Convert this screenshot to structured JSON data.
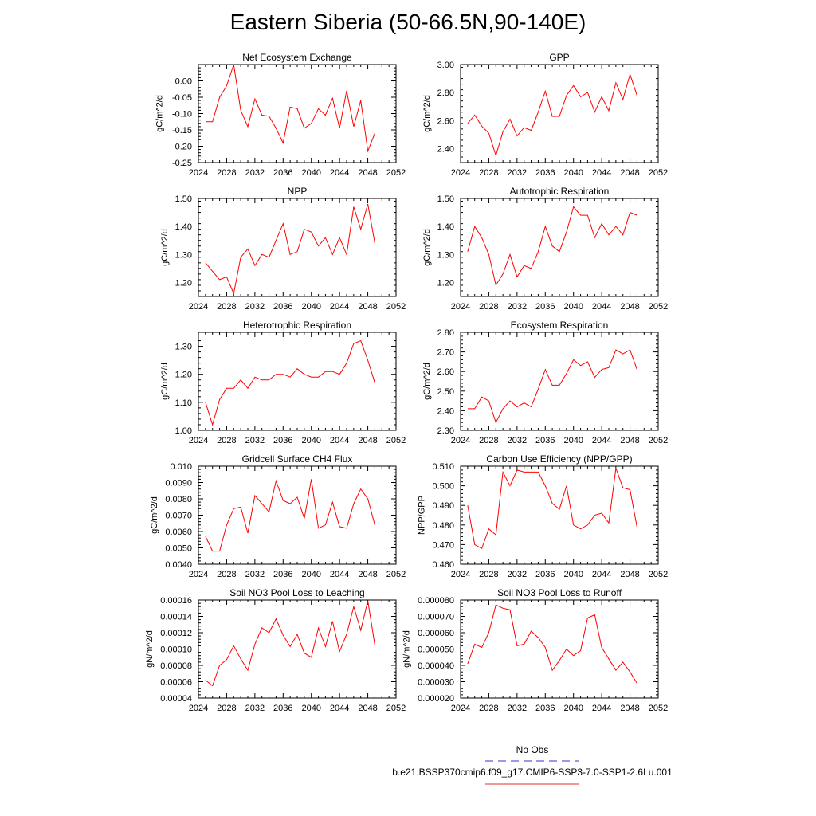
{
  "title": "Eastern Siberia (50-66.5N,90-140E)",
  "legend": {
    "entries": [
      {
        "label": "No Obs",
        "color": "#3333cc",
        "dash": true
      },
      {
        "label": "b.e21.BSSP370cmip6.f09_g17.CMIP6-SSP3-7.0-SSP1-2.6Lu.001",
        "color": "#e03030",
        "dash": false
      }
    ]
  },
  "colors": {
    "series": "#ff0000"
  },
  "chart_data": [
    {
      "type": "line",
      "title": "Net Ecosystem Exchange",
      "ylabel": "gC/m^2/d",
      "xlim": [
        2024,
        2052
      ],
      "xticks": [
        "2024",
        "2028",
        "2032",
        "2036",
        "2040",
        "2044",
        "2048",
        "2052"
      ],
      "ylim": [
        -0.25,
        0.05
      ],
      "yticks": [
        "-0.25",
        "-0.20",
        "-0.15",
        "-0.10",
        "-0.05",
        "0.00"
      ],
      "x": [
        2025,
        2026,
        2027,
        2028,
        2029,
        2030,
        2031,
        2032,
        2033,
        2034,
        2035,
        2036,
        2037,
        2038,
        2039,
        2040,
        2041,
        2042,
        2043,
        2044,
        2045,
        2046,
        2047,
        2048,
        2049
      ],
      "y": [
        -0.125,
        -0.125,
        -0.05,
        -0.015,
        0.05,
        -0.09,
        -0.14,
        -0.055,
        -0.105,
        -0.108,
        -0.145,
        -0.19,
        -0.08,
        -0.085,
        -0.145,
        -0.13,
        -0.085,
        -0.105,
        -0.053,
        -0.145,
        -0.03,
        -0.14,
        -0.06,
        -0.215,
        -0.16
      ]
    },
    {
      "type": "line",
      "title": "GPP",
      "ylabel": "gC/m^2/d",
      "xlim": [
        2024,
        2052
      ],
      "xticks": [
        "2024",
        "2028",
        "2032",
        "2036",
        "2040",
        "2044",
        "2048",
        "2052"
      ],
      "ylim": [
        2.3,
        3.0
      ],
      "yticks": [
        "2.40",
        "2.60",
        "2.80",
        "3.00"
      ],
      "x": [
        2025,
        2026,
        2027,
        2028,
        2029,
        2030,
        2031,
        2032,
        2033,
        2034,
        2035,
        2036,
        2037,
        2038,
        2039,
        2040,
        2041,
        2042,
        2043,
        2044,
        2045,
        2046,
        2047,
        2048,
        2049
      ],
      "y": [
        2.58,
        2.64,
        2.56,
        2.51,
        2.35,
        2.52,
        2.61,
        2.49,
        2.55,
        2.53,
        2.66,
        2.81,
        2.63,
        2.63,
        2.78,
        2.85,
        2.77,
        2.8,
        2.66,
        2.77,
        2.67,
        2.87,
        2.75,
        2.93,
        2.78
      ]
    },
    {
      "type": "line",
      "title": "NPP",
      "ylabel": "gC/m^2/d",
      "xlim": [
        2024,
        2052
      ],
      "xticks": [
        "2024",
        "2028",
        "2032",
        "2036",
        "2040",
        "2044",
        "2048",
        "2052"
      ],
      "ylim": [
        1.15,
        1.5
      ],
      "yticks": [
        "1.20",
        "1.30",
        "1.40",
        "1.50"
      ],
      "x": [
        2025,
        2026,
        2027,
        2028,
        2029,
        2030,
        2031,
        2032,
        2033,
        2034,
        2035,
        2036,
        2037,
        2038,
        2039,
        2040,
        2041,
        2042,
        2043,
        2044,
        2045,
        2046,
        2047,
        2048,
        2049
      ],
      "y": [
        1.27,
        1.24,
        1.21,
        1.22,
        1.16,
        1.29,
        1.32,
        1.26,
        1.3,
        1.29,
        1.35,
        1.41,
        1.3,
        1.31,
        1.39,
        1.38,
        1.33,
        1.36,
        1.3,
        1.36,
        1.3,
        1.47,
        1.39,
        1.48,
        1.34
      ]
    },
    {
      "type": "line",
      "title": "Autotrophic Respiration",
      "ylabel": "gC/m^2/d",
      "xlim": [
        2024,
        2052
      ],
      "xticks": [
        "2024",
        "2028",
        "2032",
        "2036",
        "2040",
        "2044",
        "2048",
        "2052"
      ],
      "ylim": [
        1.15,
        1.5
      ],
      "yticks": [
        "1.20",
        "1.30",
        "1.40",
        "1.50"
      ],
      "x": [
        2025,
        2026,
        2027,
        2028,
        2029,
        2030,
        2031,
        2032,
        2033,
        2034,
        2035,
        2036,
        2037,
        2038,
        2039,
        2040,
        2041,
        2042,
        2043,
        2044,
        2045,
        2046,
        2047,
        2048,
        2049
      ],
      "y": [
        1.31,
        1.4,
        1.36,
        1.3,
        1.19,
        1.23,
        1.3,
        1.22,
        1.26,
        1.25,
        1.31,
        1.4,
        1.33,
        1.31,
        1.38,
        1.47,
        1.44,
        1.44,
        1.36,
        1.41,
        1.37,
        1.4,
        1.37,
        1.45,
        1.44
      ]
    },
    {
      "type": "line",
      "title": "Heterotrophic Respiration",
      "ylabel": "gC/m^2/d",
      "xlim": [
        2024,
        2052
      ],
      "xticks": [
        "2024",
        "2028",
        "2032",
        "2036",
        "2040",
        "2044",
        "2048",
        "2052"
      ],
      "ylim": [
        1.0,
        1.35
      ],
      "yticks": [
        "1.00",
        "1.10",
        "1.20",
        "1.30"
      ],
      "x": [
        2025,
        2026,
        2027,
        2028,
        2029,
        2030,
        2031,
        2032,
        2033,
        2034,
        2035,
        2036,
        2037,
        2038,
        2039,
        2040,
        2041,
        2042,
        2043,
        2044,
        2045,
        2046,
        2047,
        2048,
        2049
      ],
      "y": [
        1.1,
        1.02,
        1.11,
        1.15,
        1.15,
        1.18,
        1.15,
        1.19,
        1.18,
        1.18,
        1.2,
        1.2,
        1.19,
        1.22,
        1.2,
        1.19,
        1.19,
        1.21,
        1.21,
        1.2,
        1.24,
        1.31,
        1.32,
        1.25,
        1.17
      ]
    },
    {
      "type": "line",
      "title": "Ecosystem Respiration",
      "ylabel": "gC/m^2/d",
      "xlim": [
        2024,
        2052
      ],
      "xticks": [
        "2024",
        "2028",
        "2032",
        "2036",
        "2040",
        "2044",
        "2048",
        "2052"
      ],
      "ylim": [
        2.3,
        2.8
      ],
      "yticks": [
        "2.30",
        "2.40",
        "2.50",
        "2.60",
        "2.70",
        "2.80"
      ],
      "x": [
        2025,
        2026,
        2027,
        2028,
        2029,
        2030,
        2031,
        2032,
        2033,
        2034,
        2035,
        2036,
        2037,
        2038,
        2039,
        2040,
        2041,
        2042,
        2043,
        2044,
        2045,
        2046,
        2047,
        2048,
        2049
      ],
      "y": [
        2.41,
        2.41,
        2.47,
        2.45,
        2.34,
        2.41,
        2.45,
        2.42,
        2.44,
        2.42,
        2.51,
        2.61,
        2.53,
        2.53,
        2.59,
        2.66,
        2.63,
        2.65,
        2.57,
        2.61,
        2.62,
        2.71,
        2.69,
        2.71,
        2.61
      ]
    },
    {
      "type": "line",
      "title": "Gridcell Surface CH4 Flux",
      "ylabel": "gC/m^2/d",
      "xlim": [
        2024,
        2052
      ],
      "xticks": [
        "2024",
        "2028",
        "2032",
        "2036",
        "2040",
        "2044",
        "2048",
        "2052"
      ],
      "ylim": [
        0.004,
        0.01
      ],
      "yticks": [
        "0.0040",
        "0.0050",
        "0.0060",
        "0.0070",
        "0.0080",
        "0.0090",
        "0.010"
      ],
      "x": [
        2025,
        2026,
        2027,
        2028,
        2029,
        2030,
        2031,
        2032,
        2033,
        2034,
        2035,
        2036,
        2037,
        2038,
        2039,
        2040,
        2041,
        2042,
        2043,
        2044,
        2045,
        2046,
        2047,
        2048,
        2049
      ],
      "y": [
        0.0057,
        0.0048,
        0.0048,
        0.0064,
        0.0074,
        0.0075,
        0.0059,
        0.0082,
        0.0077,
        0.0072,
        0.0091,
        0.0079,
        0.0077,
        0.0081,
        0.0068,
        0.0092,
        0.0062,
        0.0064,
        0.0078,
        0.0063,
        0.0062,
        0.0077,
        0.0086,
        0.008,
        0.0064
      ]
    },
    {
      "type": "line",
      "title": "Carbon Use Efficiency (NPP/GPP)",
      "ylabel": "NPP/GPP",
      "xlim": [
        2024,
        2052
      ],
      "xticks": [
        "2024",
        "2028",
        "2032",
        "2036",
        "2040",
        "2044",
        "2048",
        "2052"
      ],
      "ylim": [
        0.46,
        0.51
      ],
      "yticks": [
        "0.460",
        "0.470",
        "0.480",
        "0.490",
        "0.500",
        "0.510"
      ],
      "x": [
        2025,
        2026,
        2027,
        2028,
        2029,
        2030,
        2031,
        2032,
        2033,
        2034,
        2035,
        2036,
        2037,
        2038,
        2039,
        2040,
        2041,
        2042,
        2043,
        2044,
        2045,
        2046,
        2047,
        2048,
        2049
      ],
      "y": [
        0.49,
        0.47,
        0.468,
        0.478,
        0.475,
        0.507,
        0.5,
        0.508,
        0.507,
        0.507,
        0.507,
        0.5,
        0.491,
        0.488,
        0.5,
        0.48,
        0.478,
        0.48,
        0.485,
        0.486,
        0.481,
        0.509,
        0.499,
        0.498,
        0.479
      ]
    },
    {
      "type": "line",
      "title": "Soil NO3 Pool Loss to Leaching",
      "ylabel": "gN/m^2/d",
      "xlim": [
        2024,
        2052
      ],
      "xticks": [
        "2024",
        "2028",
        "2032",
        "2036",
        "2040",
        "2044",
        "2048",
        "2052"
      ],
      "ylim": [
        4e-05,
        0.00016
      ],
      "yticks": [
        "0.00004",
        "0.00006",
        "0.00008",
        "0.00010",
        "0.00012",
        "0.00014",
        "0.00016"
      ],
      "x": [
        2025,
        2026,
        2027,
        2028,
        2029,
        2030,
        2031,
        2032,
        2033,
        2034,
        2035,
        2036,
        2037,
        2038,
        2039,
        2040,
        2041,
        2042,
        2043,
        2044,
        2045,
        2046,
        2047,
        2048,
        2049
      ],
      "y": [
        6.2e-05,
        5.5e-05,
        8e-05,
        8.7e-05,
        0.000104,
        8.8e-05,
        7.4e-05,
        0.000106,
        0.000126,
        0.00012,
        0.000137,
        0.000117,
        0.000103,
        0.000118,
        9.5e-05,
        9e-05,
        0.000126,
        0.000103,
        0.000134,
        9.7e-05,
        0.000118,
        0.000152,
        0.000123,
        0.000159,
        0.000105
      ]
    },
    {
      "type": "line",
      "title": "Soil NO3 Pool Loss to Runoff",
      "ylabel": "gN/m^2/d",
      "xlim": [
        2024,
        2052
      ],
      "xticks": [
        "2024",
        "2028",
        "2032",
        "2036",
        "2040",
        "2044",
        "2048",
        "2052"
      ],
      "ylim": [
        2e-05,
        8e-05
      ],
      "yticks": [
        "0.000020",
        "0.000030",
        "0.000040",
        "0.000050",
        "0.000060",
        "0.000070",
        "0.000080"
      ],
      "x": [
        2025,
        2026,
        2027,
        2028,
        2029,
        2030,
        2031,
        2032,
        2033,
        2034,
        2035,
        2036,
        2037,
        2038,
        2039,
        2040,
        2041,
        2042,
        2043,
        2044,
        2045,
        2046,
        2047,
        2048,
        2049
      ],
      "y": [
        4.1e-05,
        5.3e-05,
        5.1e-05,
        6e-05,
        7.7e-05,
        7.5e-05,
        7.4e-05,
        5.2e-05,
        5.3e-05,
        6.1e-05,
        5.7e-05,
        5.1e-05,
        3.7e-05,
        4.3e-05,
        5e-05,
        4.6e-05,
        4.9e-05,
        6.9e-05,
        7.1e-05,
        5.1e-05,
        4.4e-05,
        3.7e-05,
        4.2e-05,
        3.6e-05,
        2.9e-05
      ]
    }
  ]
}
